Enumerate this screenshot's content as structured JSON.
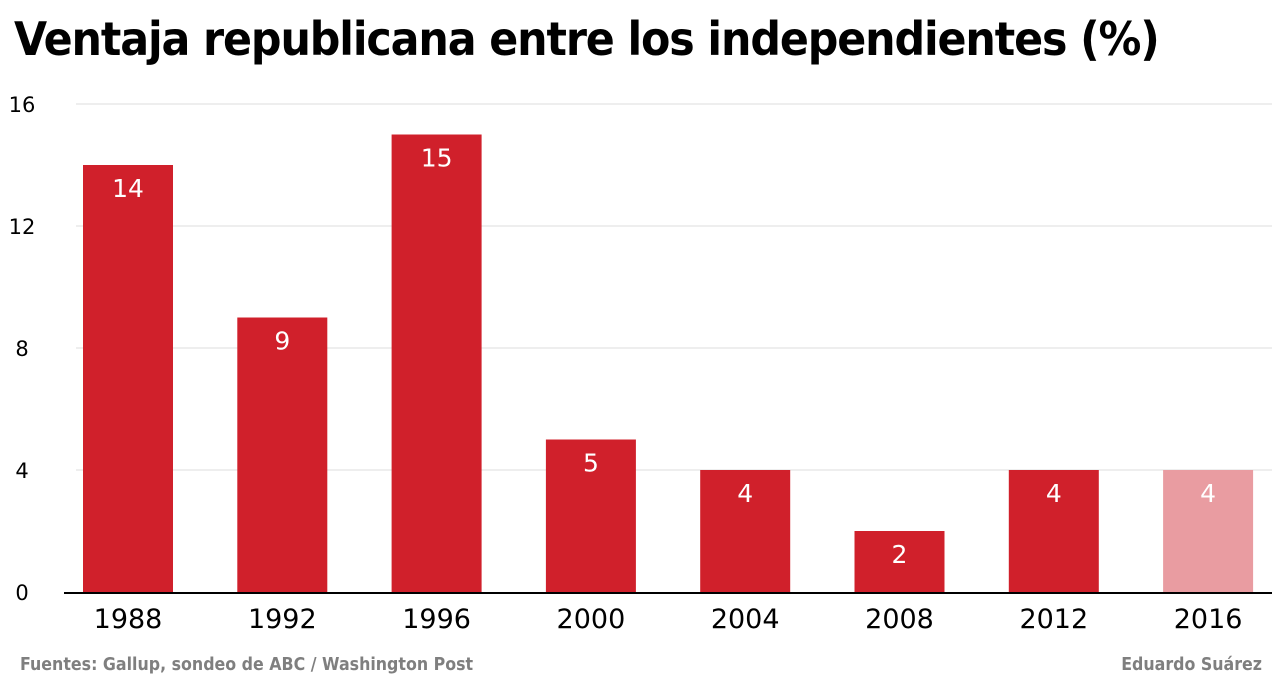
{
  "chart_data": {
    "type": "bar",
    "title": "Ventaja republicana entre los independientes (%)",
    "xlabel": "",
    "ylabel": "",
    "categories": [
      "1988",
      "1992",
      "1996",
      "2000",
      "2004",
      "2008",
      "2012",
      "2016"
    ],
    "values": [
      14,
      9,
      15,
      5,
      4,
      2,
      4,
      4
    ],
    "data_labels": [
      "14",
      "9",
      "15",
      "5",
      "4",
      "2",
      "4",
      "4"
    ],
    "highlighted": [
      false,
      false,
      false,
      false,
      false,
      false,
      false,
      true
    ],
    "ylim": [
      0,
      16
    ],
    "yticks": [
      0,
      4,
      8,
      12,
      16
    ],
    "grid": true,
    "colors": {
      "bar": "#d0202b",
      "bar_highlight": "#e99ca1",
      "grid": "#dddddd",
      "axis": "#000000"
    }
  },
  "footer": {
    "source": "Fuentes: Gallup, sondeo de ABC / Washington Post",
    "author": "Eduardo Suárez"
  }
}
